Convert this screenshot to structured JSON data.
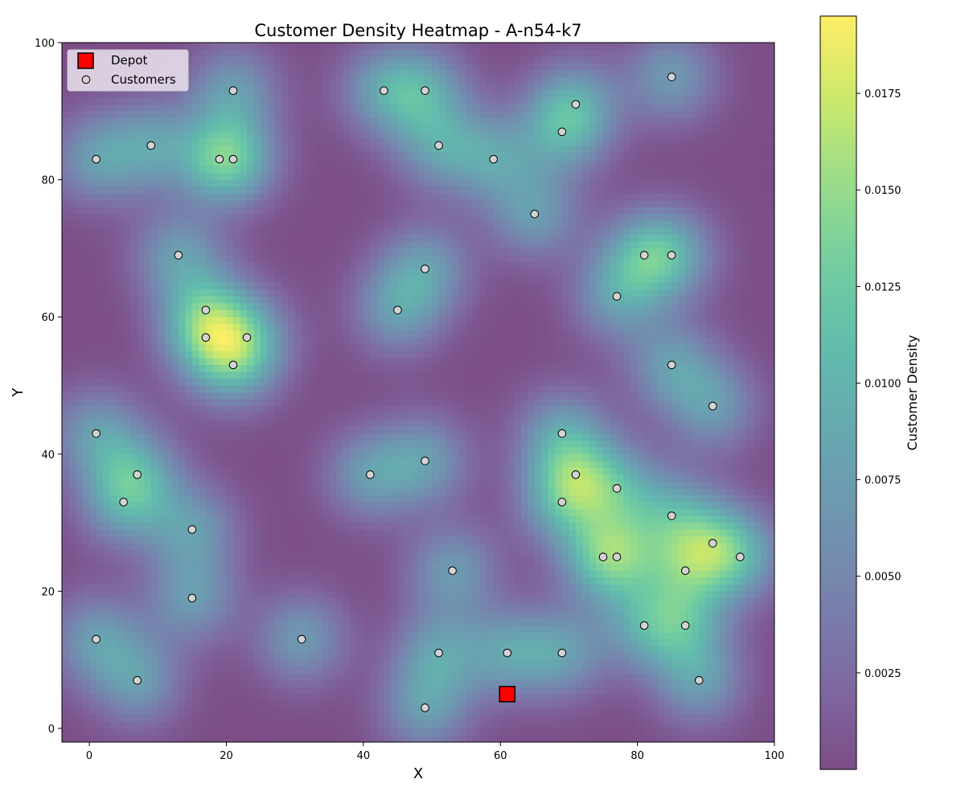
{
  "chart_data": {
    "type": "heatmap",
    "title": "Customer Density Heatmap - A-n54-k7",
    "xlabel": "X",
    "ylabel": "Y",
    "xlim": [
      -4,
      100
    ],
    "ylim": [
      -2,
      100
    ],
    "xticks": [
      "0",
      "20",
      "40",
      "60",
      "80",
      "100"
    ],
    "yticks": [
      "0",
      "20",
      "40",
      "60",
      "80",
      "100"
    ],
    "xtick_values": [
      0,
      20,
      40,
      60,
      80,
      100
    ],
    "ytick_values": [
      0,
      20,
      40,
      60,
      80,
      100
    ],
    "colorbar": {
      "label": "Customer Density",
      "range": [
        0.0,
        0.0195
      ],
      "ticks": [
        "0.0025",
        "0.0050",
        "0.0075",
        "0.0100",
        "0.0125",
        "0.0150",
        "0.0175"
      ],
      "tick_values": [
        0.0025,
        0.005,
        0.0075,
        0.01,
        0.0125,
        0.015,
        0.0175
      ],
      "colormap": "viridis",
      "alpha": 0.7
    },
    "legend": {
      "position": "top-left",
      "entries": [
        {
          "label": "Depot",
          "marker": "square",
          "color": "#ff0000"
        },
        {
          "label": "Customers",
          "marker": "circle",
          "color": "#d3d3d3"
        }
      ]
    },
    "depot": {
      "x": 61,
      "y": 5
    },
    "customers": [
      {
        "x": 21,
        "y": 93
      },
      {
        "x": 43,
        "y": 93
      },
      {
        "x": 49,
        "y": 93
      },
      {
        "x": 85,
        "y": 95
      },
      {
        "x": 71,
        "y": 91
      },
      {
        "x": 69,
        "y": 87
      },
      {
        "x": 9,
        "y": 85
      },
      {
        "x": 51,
        "y": 85
      },
      {
        "x": 1,
        "y": 83
      },
      {
        "x": 19,
        "y": 83
      },
      {
        "x": 21,
        "y": 83
      },
      {
        "x": 59,
        "y": 83
      },
      {
        "x": 65,
        "y": 75
      },
      {
        "x": 13,
        "y": 69
      },
      {
        "x": 81,
        "y": 69
      },
      {
        "x": 85,
        "y": 69
      },
      {
        "x": 49,
        "y": 67
      },
      {
        "x": 77,
        "y": 63
      },
      {
        "x": 17,
        "y": 61
      },
      {
        "x": 45,
        "y": 61
      },
      {
        "x": 17,
        "y": 57
      },
      {
        "x": 23,
        "y": 57
      },
      {
        "x": 21,
        "y": 53
      },
      {
        "x": 85,
        "y": 53
      },
      {
        "x": 91,
        "y": 47
      },
      {
        "x": 1,
        "y": 43
      },
      {
        "x": 69,
        "y": 43
      },
      {
        "x": 49,
        "y": 39
      },
      {
        "x": 7,
        "y": 37
      },
      {
        "x": 41,
        "y": 37
      },
      {
        "x": 71,
        "y": 37
      },
      {
        "x": 77,
        "y": 35
      },
      {
        "x": 5,
        "y": 33
      },
      {
        "x": 69,
        "y": 33
      },
      {
        "x": 85,
        "y": 31
      },
      {
        "x": 15,
        "y": 29
      },
      {
        "x": 91,
        "y": 27
      },
      {
        "x": 75,
        "y": 25
      },
      {
        "x": 77,
        "y": 25
      },
      {
        "x": 95,
        "y": 25
      },
      {
        "x": 53,
        "y": 23
      },
      {
        "x": 87,
        "y": 23
      },
      {
        "x": 15,
        "y": 19
      },
      {
        "x": 81,
        "y": 15
      },
      {
        "x": 87,
        "y": 15
      },
      {
        "x": 1,
        "y": 13
      },
      {
        "x": 31,
        "y": 13
      },
      {
        "x": 51,
        "y": 11
      },
      {
        "x": 61,
        "y": 11
      },
      {
        "x": 69,
        "y": 11
      },
      {
        "x": 7,
        "y": 7
      },
      {
        "x": 89,
        "y": 7
      },
      {
        "x": 49,
        "y": 3
      }
    ]
  },
  "colors": {
    "depot_fill": "#ff0000",
    "customer_fill": "#d3d3d3",
    "marker_edge": "#000000",
    "legend_bg": "#e6dcea"
  }
}
